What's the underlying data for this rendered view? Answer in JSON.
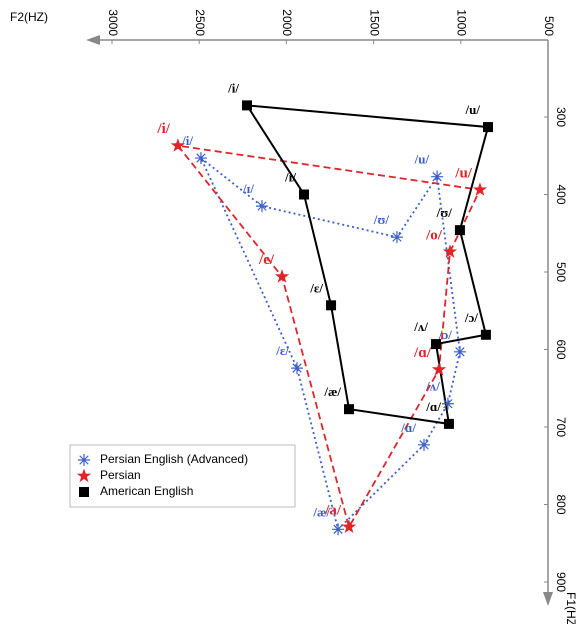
{
  "chart_data": {
    "type": "line",
    "x_label": "F2(HZ)",
    "y_label": "F1(HZ)",
    "xlim": [
      3000,
      500
    ],
    "xticks": [
      3000,
      2500,
      2000,
      1500,
      1000,
      500
    ],
    "ylim": [
      200,
      900
    ],
    "yticks": [
      300,
      400,
      500,
      600,
      700,
      800,
      900
    ],
    "legend": "lower left",
    "series": [
      {
        "name": "Persian English (Advanced)",
        "color": "#3b5fc8",
        "marker": "asterisk",
        "dash": "dotted",
        "labels": [
          "/i/",
          "/ɪ/",
          "/ʊ/",
          "/u/",
          "/ɔ/",
          "/ʌ/",
          "/ɑ/",
          "/æ/",
          "/ɛ/"
        ],
        "x": [
          2490,
          2140,
          1366,
          1136,
          1005,
          1074,
          1211,
          1704,
          1939
        ],
        "values": [
          353,
          415,
          455,
          377,
          603,
          670,
          723,
          832,
          624
        ]
      },
      {
        "name": "Persian",
        "color": "#e0242a",
        "marker": "star",
        "dash": "dashed",
        "labels": [
          "/i/",
          "/e/",
          "/a/",
          "/ɑ/",
          "/o/",
          "/u/"
        ],
        "x": [
          2622,
          2025,
          1641,
          1125,
          1062,
          890
        ],
        "values": [
          337,
          506,
          829,
          626,
          474,
          394
        ]
      },
      {
        "name": "American English",
        "color": "#000000",
        "marker": "square",
        "dash": "solid",
        "labels": [
          "/i/",
          "/ɪ/",
          "/ɛ/",
          "/æ/",
          "/ɑ/",
          "/ʌ/",
          "/ɔ/",
          "/ʊ/",
          "/u/"
        ],
        "x": [
          2226,
          1899,
          1744,
          1641,
          1068,
          1142,
          856,
          1005,
          844
        ],
        "values": [
          285,
          400,
          543,
          677,
          696,
          593,
          581,
          446,
          313
        ]
      }
    ]
  }
}
